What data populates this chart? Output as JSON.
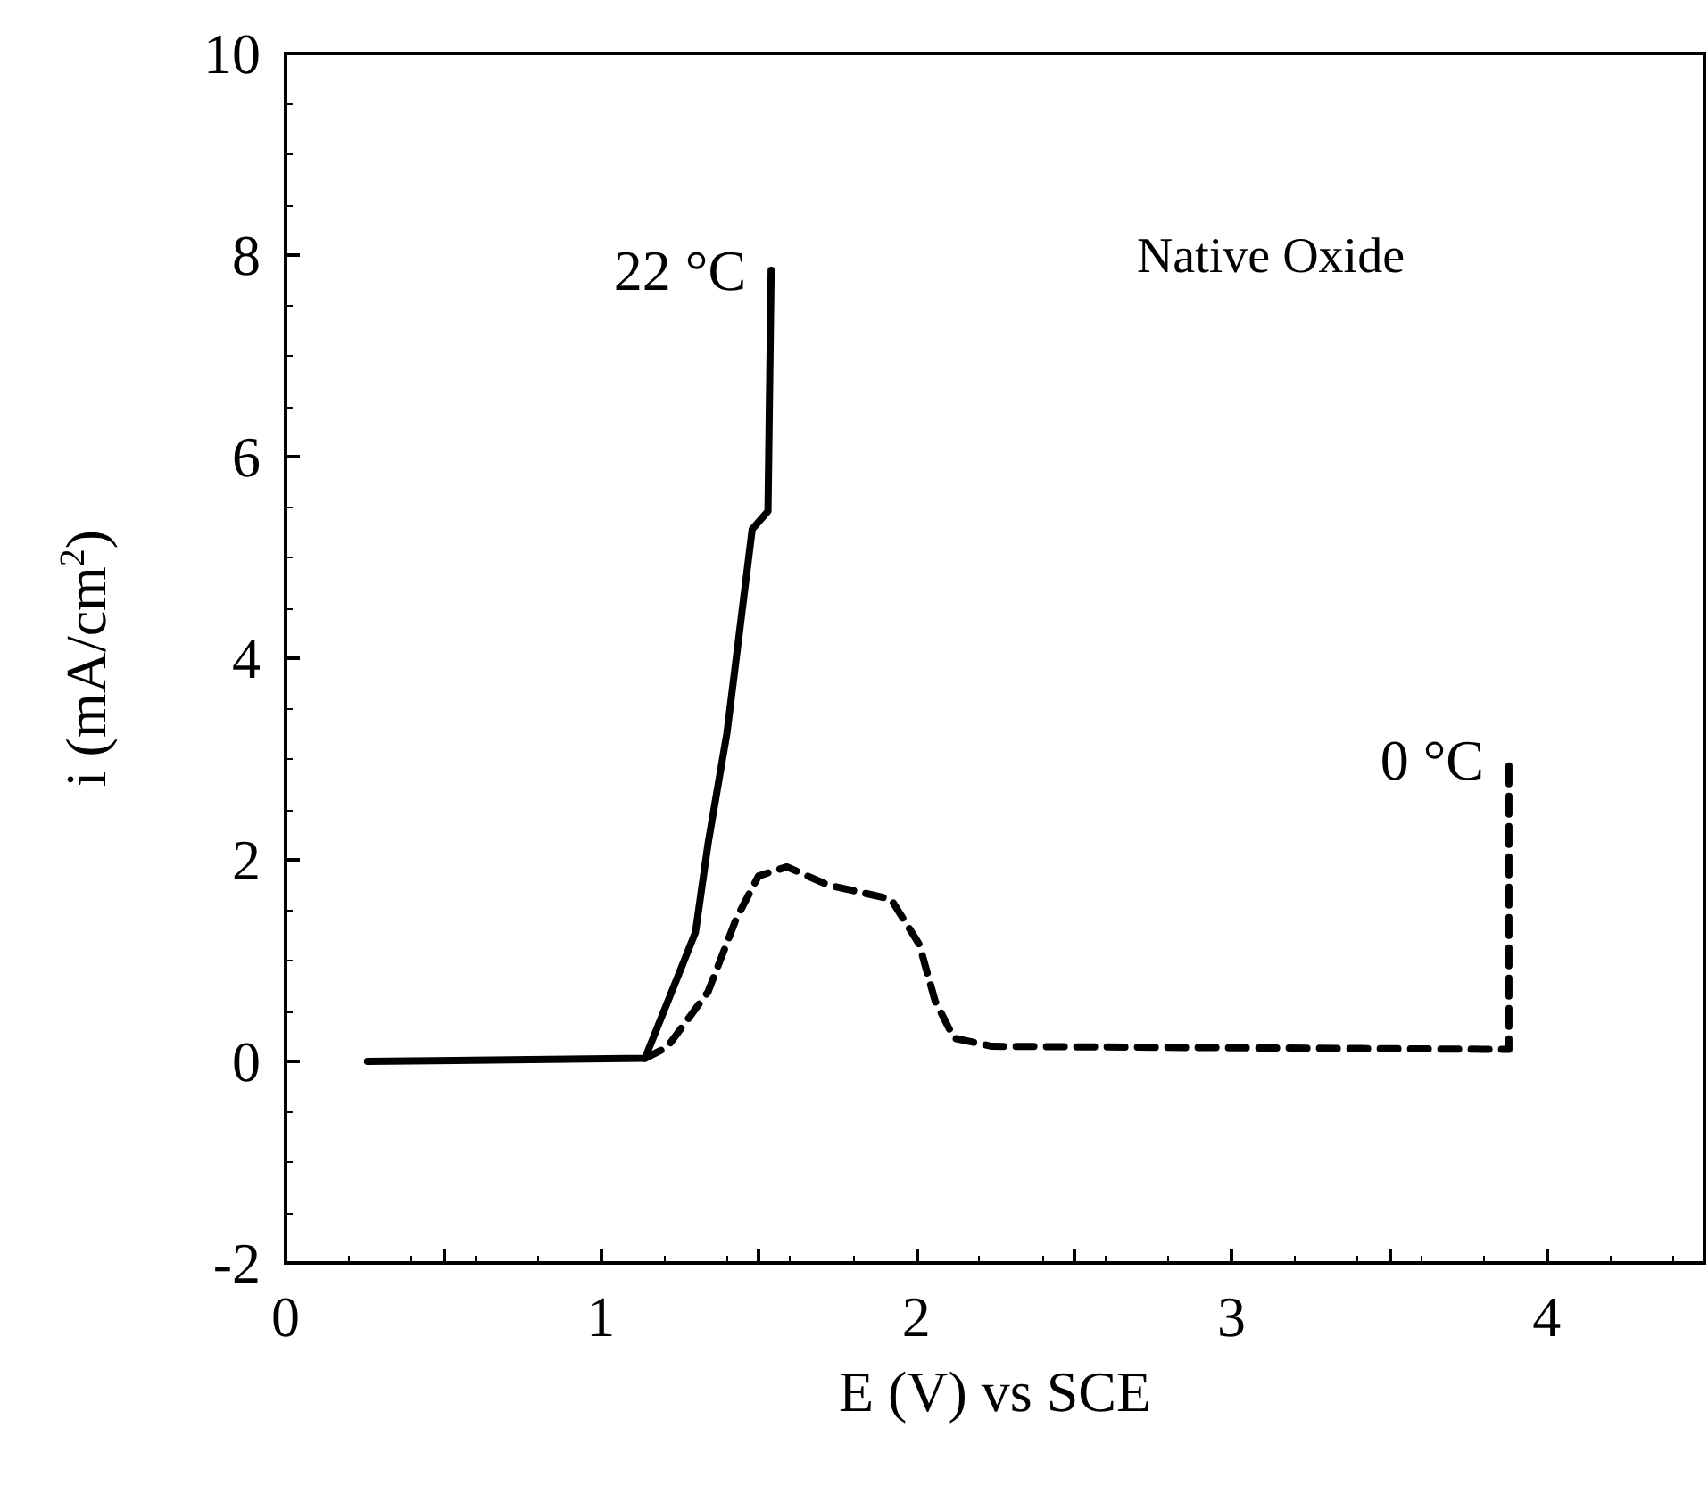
{
  "chart_data": {
    "type": "line",
    "xlabel": "E (V) vs SCE",
    "ylabel": "i (mA/cm$^{2}$)",
    "xlim": [
      0,
      4.5
    ],
    "ylim": [
      -2,
      10
    ],
    "xticks": [
      0,
      {
        "value": 0.5,
        "label": null
      },
      1,
      {
        "value": 1.5,
        "label": null
      },
      2,
      {
        "value": 2.5,
        "label": null
      },
      3,
      {
        "value": 3.5,
        "label": null
      },
      4
    ],
    "yticks": [
      -2,
      0,
      2,
      4,
      6,
      8,
      10
    ],
    "grid": false,
    "legend": false,
    "marker": "none",
    "annotations": [
      "Native Oxide"
    ],
    "series": [
      {
        "name": "22 °C",
        "color": "#000000",
        "line_style": "solid",
        "x": [
          0.26,
          1.14,
          1.3,
          1.34,
          1.4,
          1.44,
          1.48,
          1.53,
          1.54
        ],
        "values": [
          0,
          0.03,
          1.28,
          2.16,
          3.26,
          4.27,
          5.28,
          5.46,
          7.85
        ]
      },
      {
        "name": "0 °C",
        "color": "#000000",
        "line_style": "dashed",
        "x": [
          1.14,
          1.21,
          1.34,
          1.43,
          1.5,
          1.59,
          1.72,
          1.92,
          2.01,
          2.06,
          2.12,
          2.24,
          3.8,
          3.88,
          3.88
        ],
        "values": [
          0.03,
          0.14,
          0.69,
          1.42,
          1.84,
          1.93,
          1.75,
          1.61,
          1.16,
          0.6,
          0.23,
          0.15,
          0.12,
          0.12,
          2.99
        ]
      }
    ]
  }
}
